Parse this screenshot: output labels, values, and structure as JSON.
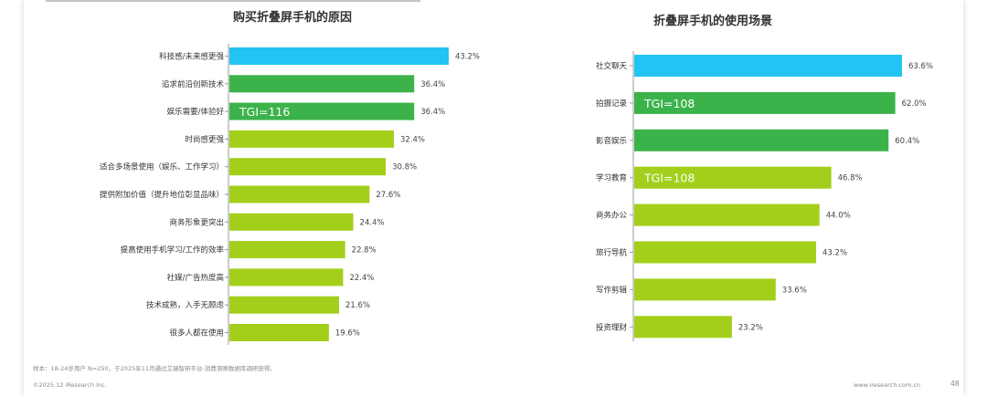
{
  "colors": {
    "highlight": "#21c4f2",
    "dark_green": "#3cb34a",
    "light_green": "#a3cf1b",
    "tgi_text": "#ffffff"
  },
  "chart_data": [
    {
      "type": "bar",
      "orientation": "horizontal",
      "title": "购买折叠屏手机的原因",
      "categories": [
        "科技感/未来感更强",
        "追求前沿创新技术",
        "娱乐需要/体验好",
        "时尚感更强",
        "适合多场景使用（娱乐、工作学习）",
        "提供附加价值（提升地位彰显品味）",
        "商务形象更突出",
        "提高使用手机学习/工作的效率",
        "社媒/广告热度高",
        "技术成熟，入手无顾虑",
        "很多人都在使用"
      ],
      "values": [
        43.2,
        36.4,
        36.4,
        32.4,
        30.8,
        27.6,
        24.4,
        22.8,
        22.4,
        21.6,
        19.6
      ],
      "value_labels": [
        "43.2%",
        "36.4%",
        "36.4%",
        "32.4%",
        "30.8%",
        "27.6%",
        "24.4%",
        "22.8%",
        "22.4%",
        "21.6%",
        "19.6%"
      ],
      "bar_colors": [
        "highlight",
        "dark_green",
        "dark_green",
        "light_green",
        "light_green",
        "light_green",
        "light_green",
        "light_green",
        "light_green",
        "light_green",
        "light_green"
      ],
      "annotations": [
        {
          "category_index": 2,
          "text": "TGI=116"
        }
      ],
      "unit": "%"
    },
    {
      "type": "bar",
      "orientation": "horizontal",
      "title": "折叠屏手机的使用场景",
      "categories": [
        "社交聊天",
        "拍摄记录",
        "影音娱乐",
        "学习教育",
        "商务办公",
        "旅行导航",
        "写作剪辑",
        "投资理财"
      ],
      "values": [
        63.6,
        62.0,
        60.4,
        46.8,
        44.0,
        43.2,
        33.6,
        23.2
      ],
      "value_labels": [
        "63.6%",
        "62.0%",
        "60.4%",
        "46.8%",
        "44.0%",
        "43.2%",
        "33.6%",
        "23.2%"
      ],
      "bar_colors": [
        "highlight",
        "dark_green",
        "dark_green",
        "light_green",
        "light_green",
        "light_green",
        "light_green",
        "light_green"
      ],
      "annotations": [
        {
          "category_index": 1,
          "text": "TGI=108"
        },
        {
          "category_index": 3,
          "text": "TGI=108"
        }
      ],
      "unit": "%"
    }
  ],
  "footer": {
    "note": "样本：18-24岁用户  N=250，于2025年11月通过艾瑞智研平台-消费洞察数据库调研获得。",
    "copyright": "©2025.12 iResearch Inc.",
    "site": "www.iresearch.com.cn",
    "page": "48"
  }
}
